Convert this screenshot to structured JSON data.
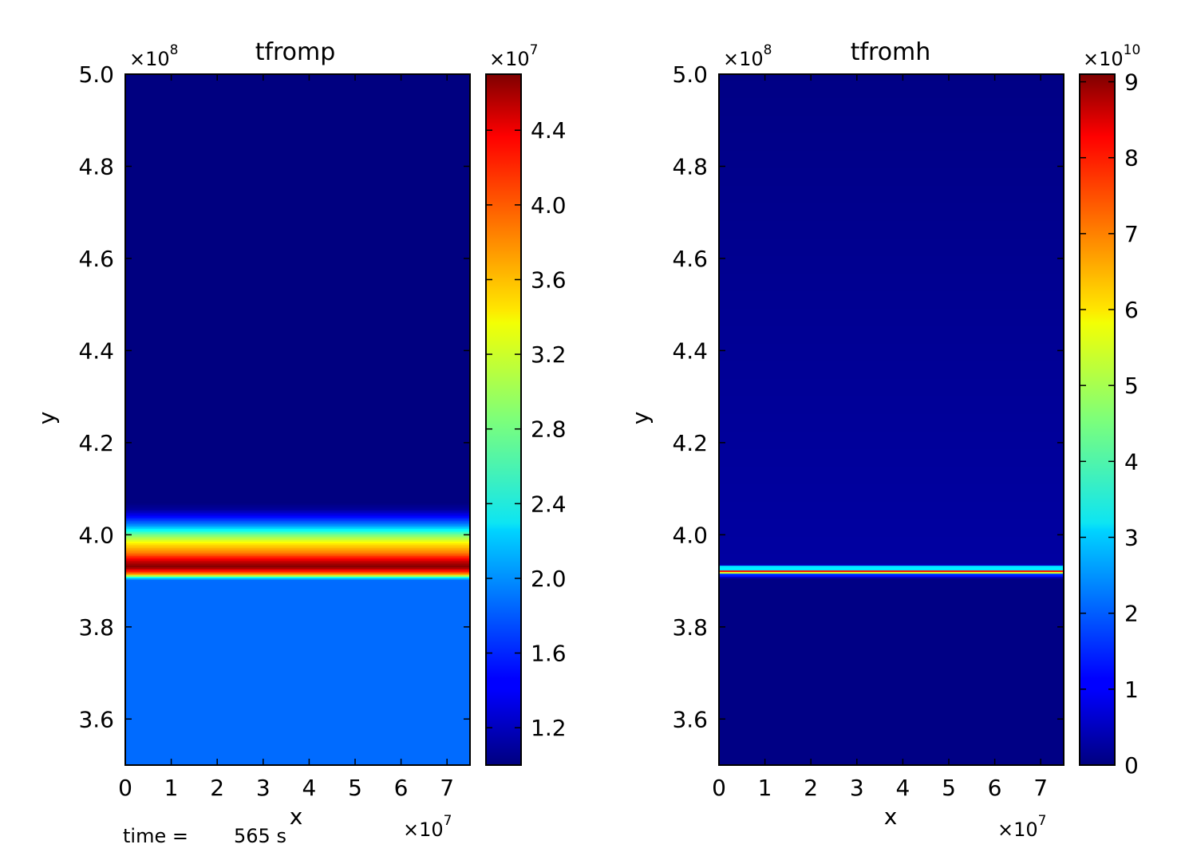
{
  "footer": {
    "time_label": "time =",
    "time_value": "565 s"
  },
  "chart_data": [
    {
      "type": "heatmap",
      "title": "tfromp",
      "xlabel": "x",
      "ylabel": "y",
      "x_multiplier": "×10",
      "x_exponent": "7",
      "y_multiplier": "×10",
      "y_exponent": "8",
      "xlim": [
        0,
        7.5
      ],
      "ylim": [
        3.5,
        5.0
      ],
      "x_ticks": [
        "0",
        "1",
        "2",
        "3",
        "4",
        "5",
        "6",
        "7"
      ],
      "y_ticks": [
        "3.6",
        "3.8",
        "4.0",
        "4.2",
        "4.4",
        "4.6",
        "4.8",
        "5.0"
      ],
      "colormap": "jet",
      "colorbar": {
        "multiplier": "×10",
        "exponent": "7",
        "range": [
          1.0,
          4.7
        ],
        "ticks": [
          "1.2",
          "1.6",
          "2.0",
          "2.4",
          "2.8",
          "3.2",
          "3.6",
          "4.0",
          "4.4"
        ]
      },
      "profile_y": [
        3.5,
        3.9,
        3.905,
        3.915,
        3.93,
        3.94,
        3.96,
        3.98,
        4.0,
        4.02,
        4.04,
        4.055,
        4.07,
        5.0
      ],
      "profile_value": [
        1.85,
        1.85,
        2.1,
        3.8,
        4.7,
        4.5,
        3.8,
        3.4,
        2.8,
        2.0,
        1.45,
        1.1,
        1.0,
        1.0
      ]
    },
    {
      "type": "heatmap",
      "title": "tfromh",
      "xlabel": "x",
      "ylabel": "y",
      "x_multiplier": "×10",
      "x_exponent": "7",
      "y_multiplier": "×10",
      "y_exponent": "8",
      "xlim": [
        0,
        7.5
      ],
      "ylim": [
        3.5,
        5.0
      ],
      "x_ticks": [
        "0",
        "1",
        "2",
        "3",
        "4",
        "5",
        "6",
        "7"
      ],
      "y_ticks": [
        "3.6",
        "3.8",
        "4.0",
        "4.2",
        "4.4",
        "4.6",
        "4.8",
        "5.0"
      ],
      "colormap": "jet",
      "colorbar": {
        "multiplier": "×10",
        "exponent": "10",
        "range": [
          0,
          9.1
        ],
        "ticks": [
          "0",
          "1",
          "2",
          "3",
          "4",
          "5",
          "6",
          "7",
          "8",
          "9"
        ]
      },
      "profile_y": [
        3.5,
        3.905,
        3.91,
        3.915,
        3.92,
        3.925,
        3.93,
        3.935,
        5.0
      ],
      "profile_value": [
        0.05,
        0.05,
        1.2,
        1.8,
        9.0,
        2.4,
        4.0,
        0.3,
        0.05
      ]
    }
  ]
}
